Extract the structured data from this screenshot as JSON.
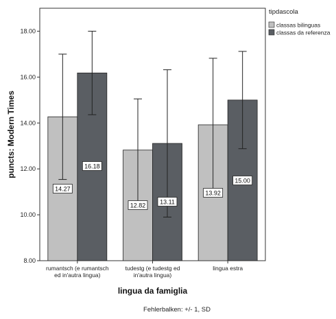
{
  "chart_data": {
    "type": "bar",
    "categories": [
      [
        "rumantsch (e rumantsch",
        "ed in'autra lingua)"
      ],
      [
        "tudestg (e tudestg ed",
        "in'autra lingua)"
      ],
      [
        "lingua estra"
      ]
    ],
    "series": [
      {
        "name": "classas bilinguas",
        "color": "#c0c0c0",
        "values": [
          14.27,
          12.82,
          13.92
        ],
        "error": [
          2.73,
          2.23,
          2.9
        ]
      },
      {
        "name": "classas da referenza",
        "color": "#5a5e63",
        "values": [
          16.18,
          13.11,
          15.0
        ],
        "error": [
          1.82,
          3.21,
          2.12
        ]
      }
    ],
    "value_labels": [
      [
        "14.27",
        "12.82",
        "13.92"
      ],
      [
        "16.18",
        "13.11",
        "15.00"
      ]
    ],
    "xlabel": "lingua da famiglia",
    "ylabel": "puncts: Modern Times",
    "ylim": [
      8.0,
      19.0
    ],
    "yticks": [
      8.0,
      10.0,
      12.0,
      14.0,
      16.0,
      18.0
    ],
    "ytick_labels": [
      "8.00",
      "10.00",
      "12.00",
      "14.00",
      "16.00",
      "18.00"
    ],
    "legend_title": "tipdascola",
    "legend_position": "top-right",
    "grid": false,
    "footnote": "Fehlerbalken: +/- 1, SD"
  }
}
